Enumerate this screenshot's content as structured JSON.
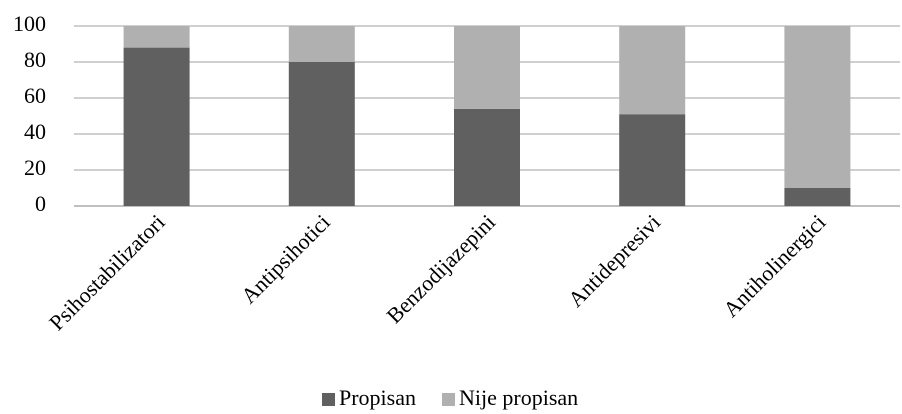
{
  "chart_data": {
    "type": "stacked-bar",
    "categories": [
      "Psihostabilizatori",
      "Antipsihotici",
      "Benzodijazepini",
      "Antidepresivi",
      "Antiholinergici"
    ],
    "series": [
      {
        "name": "Propisan",
        "color": "#606060",
        "values": [
          88,
          80,
          54,
          51,
          10
        ]
      },
      {
        "name": "Nije propisan",
        "color": "#b0b0b0",
        "values": [
          12,
          20,
          46,
          49,
          90
        ]
      }
    ],
    "ylim": [
      0,
      100
    ],
    "yticks": [
      0,
      20,
      40,
      60,
      80,
      100
    ],
    "grid": true,
    "legend": "bottom"
  }
}
